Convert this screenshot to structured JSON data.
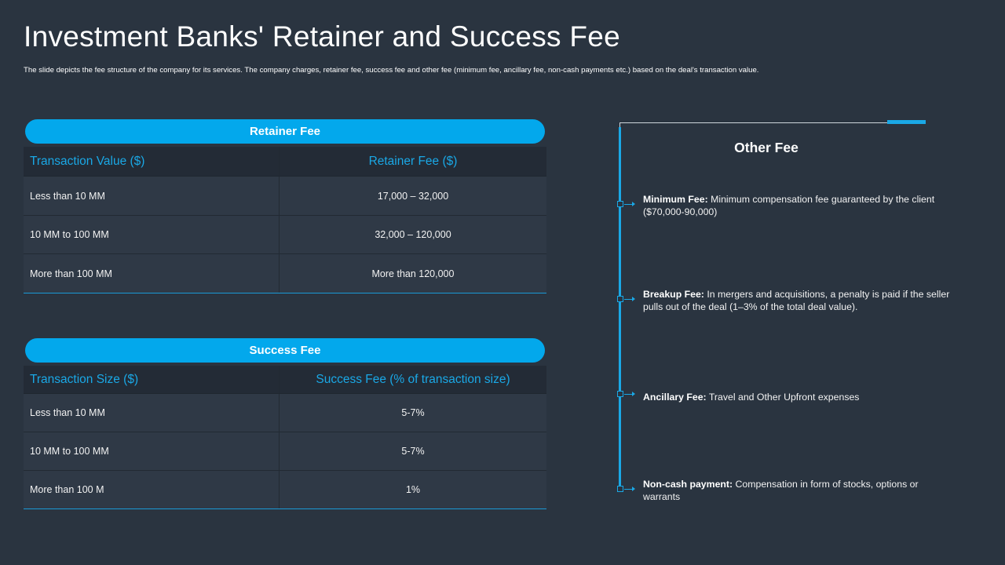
{
  "title": "Investment Banks' Retainer and Success Fee",
  "subtitle": "The slide depicts the fee structure of the company  for its services. The company charges, retainer fee, success fee and other fee (minimum  fee, ancillary fee, non-cash payments etc.) based on the deal's transaction value.",
  "retainer": {
    "heading": "Retainer Fee",
    "columns": [
      "Transaction Value ($)",
      "Retainer Fee ($)"
    ],
    "rows": [
      [
        "Less than 10 MM",
        "17,000 – 32,000"
      ],
      [
        "10 MM to 100 MM",
        "32,000 – 120,000"
      ],
      [
        "More than 100 MM",
        "More than 120,000"
      ]
    ]
  },
  "success": {
    "heading": "Success Fee",
    "columns": [
      "Transaction Size ($)",
      "Success  Fee (% of transaction size)"
    ],
    "rows": [
      [
        "Less than 10 MM",
        "5-7%"
      ],
      [
        "10 MM to 100 MM",
        "5-7%"
      ],
      [
        "More than 100 M",
        "1%"
      ]
    ]
  },
  "other": {
    "heading": "Other Fee",
    "items": [
      {
        "label": "Minimum Fee:",
        "text": " Minimum  compensation fee guaranteed  by the client ($70,000-90,000)"
      },
      {
        "label": "Breakup Fee:",
        "text": " In mergers  and acquisitions, a penalty is paid if the seller pulls out of the deal (1–3% of the total deal value)."
      },
      {
        "label": "Ancillary Fee:",
        "text": " Travel  and Other Upfront  expenses"
      },
      {
        "label": "Non-cash  payment:",
        "text": " Compensation  in form  of stocks, options  or warrants"
      }
    ]
  },
  "colors": {
    "accent": "#03a8ec",
    "background": "#2a3440"
  }
}
